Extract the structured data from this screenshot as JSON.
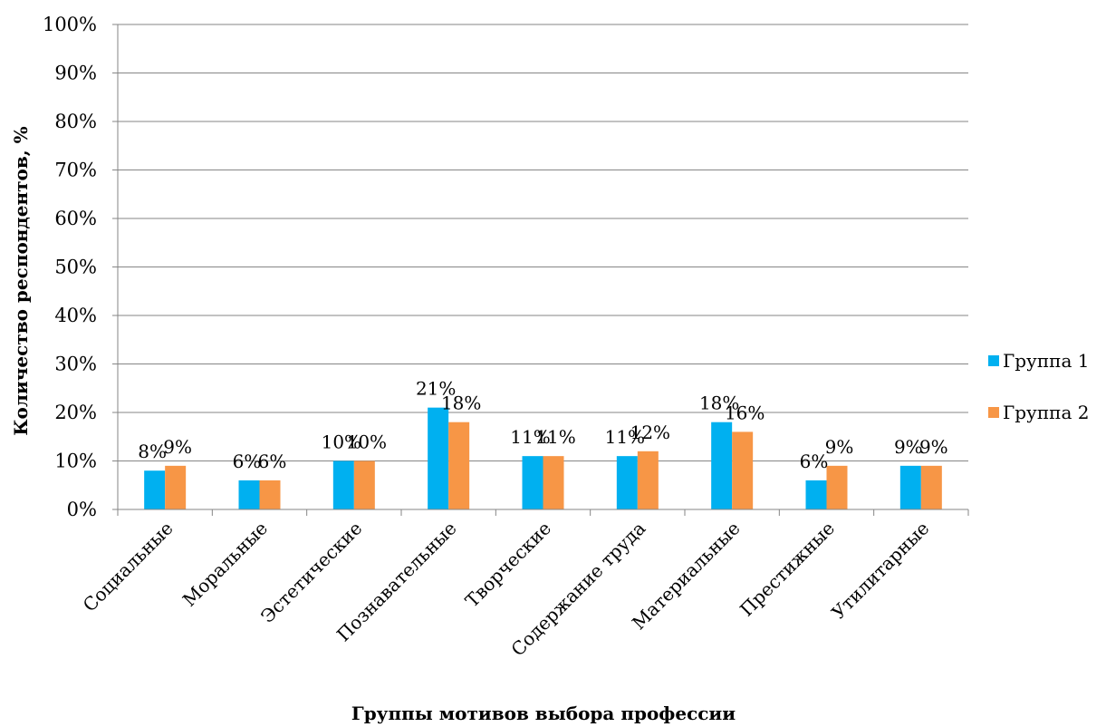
{
  "chart_data": {
    "type": "bar",
    "categories": [
      "Социальные",
      "Моральные",
      "Эстетические",
      "Познавательные",
      "Творческие",
      "Содержание труда",
      "Материальные",
      "Престижные",
      "Утилитарные"
    ],
    "series": [
      {
        "name": "Группа 1",
        "color": "#00B0F0",
        "values": [
          8,
          6,
          10,
          21,
          11,
          11,
          18,
          6,
          9
        ],
        "labels": [
          "8%",
          "6%",
          "10%",
          "21%",
          "11%",
          "11%",
          "18%",
          "6%",
          "9%"
        ]
      },
      {
        "name": "Группа 2",
        "color": "#F79646",
        "values": [
          9,
          6,
          10,
          18,
          11,
          12,
          16,
          9,
          9
        ],
        "labels": [
          "9%",
          "6%",
          "10%",
          "18%",
          "11%",
          "12%",
          "16%",
          "9%",
          "9%"
        ]
      }
    ],
    "ylim": [
      0,
      100
    ],
    "yticks": [
      "0%",
      "10%",
      "20%",
      "30%",
      "40%",
      "50%",
      "60%",
      "70%",
      "80%",
      "90%",
      "100%"
    ],
    "xlabel": "Группы мотивов выбора профессии",
    "ylabel": "Количество респондентов, %",
    "grid": true,
    "legend": "right"
  }
}
